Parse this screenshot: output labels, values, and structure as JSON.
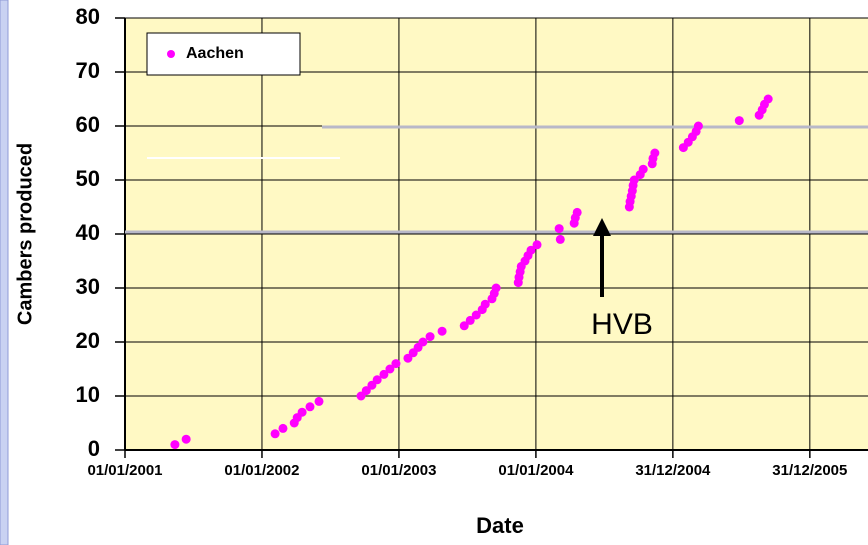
{
  "chart_data": {
    "type": "scatter",
    "ylabel": "Cambers produced",
    "xlabel": "Date",
    "annotations": [
      {
        "text": "HVB"
      }
    ],
    "legend": "upper left",
    "grid": true,
    "xlim": [
      "2001-01-01",
      "2006-06-04"
    ],
    "xticks": [
      {
        "value": "2001-01-01",
        "label": "01/01/2001"
      },
      {
        "value": "2002-01-01",
        "label": "01/01/2002"
      },
      {
        "value": "2003-01-01",
        "label": "01/01/2003"
      },
      {
        "value": "2004-01-01",
        "label": "01/01/2004"
      },
      {
        "value": "2004-12-31",
        "label": "31/12/2004"
      },
      {
        "value": "2005-12-31",
        "label": "31/12/2005"
      }
    ],
    "ylim": [
      0,
      80
    ],
    "yticks": [
      0,
      10,
      20,
      30,
      40,
      50,
      60,
      70,
      80
    ],
    "series": [
      {
        "name": "Aachen",
        "color": "#ff00ff",
        "x": [
          "2001-05-14",
          "2001-06-13",
          "2002-02-05",
          "2002-02-26",
          "2002-03-28",
          "2002-04-05",
          "2002-04-18",
          "2002-05-09",
          "2002-06-02",
          "2002-09-22",
          "2002-10-06",
          "2002-10-21",
          "2002-11-04",
          "2002-11-22",
          "2002-12-08",
          "2002-12-24",
          "2003-01-25",
          "2003-02-08",
          "2003-02-21",
          "2003-03-06",
          "2003-03-25",
          "2003-04-26",
          "2003-06-24",
          "2003-07-10",
          "2003-07-26",
          "2003-08-11",
          "2003-08-19",
          "2003-09-06",
          "2003-09-12",
          "2003-09-17",
          "2003-11-15",
          "2003-11-17",
          "2003-11-20",
          "2003-11-23",
          "2003-12-03",
          "2003-12-11",
          "2003-12-19",
          "2004-01-04",
          "2004-03-06",
          "2004-03-03",
          "2004-04-12",
          "2004-04-15",
          "2004-04-20",
          "2004-09-06",
          "2004-09-08",
          "2004-09-11",
          "2004-09-14",
          "2004-09-16",
          "2004-09-19",
          "2004-10-05",
          "2004-10-13",
          "2004-11-06",
          "2004-11-08",
          "2004-11-13",
          "2005-01-28",
          "2005-02-10",
          "2005-02-21",
          "2005-03-03",
          "2005-03-09",
          "2005-06-26",
          "2005-08-18",
          "2005-08-26",
          "2005-09-01",
          "2005-09-11"
        ],
        "values": [
          1,
          2,
          3,
          4,
          5,
          6,
          7,
          8,
          9,
          10,
          11,
          12,
          13,
          14,
          15,
          16,
          17,
          18,
          19,
          20,
          21,
          22,
          23,
          24,
          25,
          26,
          27,
          28,
          29,
          30,
          31,
          32,
          33,
          34,
          35,
          36,
          37,
          38,
          39,
          41,
          42,
          43,
          44,
          45,
          46,
          47,
          48,
          49,
          50,
          51,
          52,
          53,
          54,
          55,
          56,
          57,
          58,
          59,
          60,
          61,
          62,
          63,
          64,
          65
        ]
      }
    ]
  }
}
